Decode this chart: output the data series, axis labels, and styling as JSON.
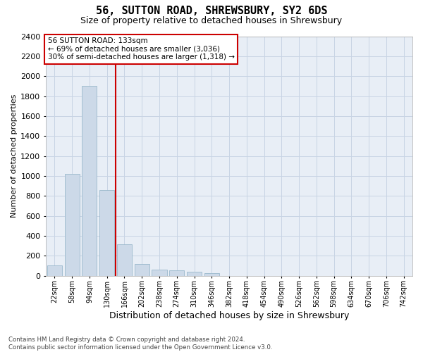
{
  "title": "56, SUTTON ROAD, SHREWSBURY, SY2 6DS",
  "subtitle": "Size of property relative to detached houses in Shrewsbury",
  "xlabel": "Distribution of detached houses by size in Shrewsbury",
  "ylabel": "Number of detached properties",
  "bar_labels": [
    "22sqm",
    "58sqm",
    "94sqm",
    "130sqm",
    "166sqm",
    "202sqm",
    "238sqm",
    "274sqm",
    "310sqm",
    "346sqm",
    "382sqm",
    "418sqm",
    "454sqm",
    "490sqm",
    "526sqm",
    "562sqm",
    "598sqm",
    "634sqm",
    "670sqm",
    "706sqm",
    "742sqm"
  ],
  "bar_values": [
    100,
    1020,
    1900,
    860,
    315,
    115,
    57,
    50,
    40,
    25,
    0,
    0,
    0,
    0,
    0,
    0,
    0,
    0,
    0,
    0,
    0
  ],
  "bar_color": "#ccd9e8",
  "bar_edgecolor": "#9ab8cc",
  "vline_x": 3.5,
  "vline_color": "#cc0000",
  "annotation_line1": "56 SUTTON ROAD: 133sqm",
  "annotation_line2": "← 69% of detached houses are smaller (3,036)",
  "annotation_line3": "30% of semi-detached houses are larger (1,318) →",
  "annotation_box_edgecolor": "#cc0000",
  "ylim_max": 2400,
  "yticks": [
    0,
    200,
    400,
    600,
    800,
    1000,
    1200,
    1400,
    1600,
    1800,
    2000,
    2200,
    2400
  ],
  "grid_color": "#c8d4e4",
  "bg_color": "#e8eef6",
  "footnote_line1": "Contains HM Land Registry data © Crown copyright and database right 2024.",
  "footnote_line2": "Contains public sector information licensed under the Open Government Licence v3.0.",
  "title_fontsize": 11,
  "subtitle_fontsize": 9,
  "ylabel_fontsize": 8,
  "xlabel_fontsize": 9
}
